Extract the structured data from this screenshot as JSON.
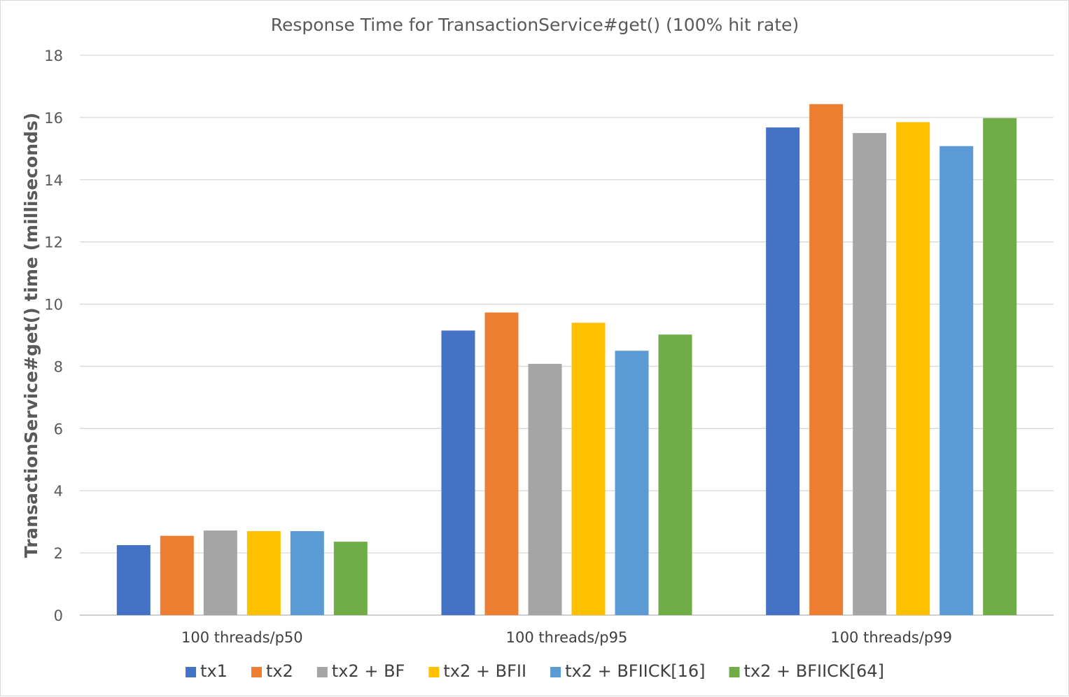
{
  "chart_data": {
    "type": "bar",
    "title": "Response Time for TransactionService#get() (100% hit rate)",
    "xlabel": "",
    "ylabel": "TransactionService#get() time (milliseconds)",
    "ylim": [
      0,
      18
    ],
    "yticks": [
      0,
      2,
      4,
      6,
      8,
      10,
      12,
      14,
      16,
      18
    ],
    "grid": true,
    "legend_position": "bottom",
    "categories": [
      "100 threads/p50",
      "100 threads/p95",
      "100 threads/p99"
    ],
    "series": [
      {
        "name": "tx1",
        "color": "#4472c4",
        "values": [
          2.25,
          9.15,
          15.68
        ]
      },
      {
        "name": "tx2",
        "color": "#ed7d31",
        "values": [
          2.55,
          9.73,
          16.43
        ]
      },
      {
        "name": "tx2 + BF",
        "color": "#a5a5a5",
        "values": [
          2.72,
          8.08,
          15.5
        ]
      },
      {
        "name": "tx2 + BFII",
        "color": "#ffc000",
        "values": [
          2.7,
          9.4,
          15.85
        ]
      },
      {
        "name": "tx2 + BFIICK[16]",
        "color": "#5b9bd5",
        "values": [
          2.7,
          8.5,
          15.08
        ]
      },
      {
        "name": "tx2 + BFIICK[64]",
        "color": "#70ad47",
        "values": [
          2.36,
          9.02,
          15.98
        ]
      }
    ]
  }
}
